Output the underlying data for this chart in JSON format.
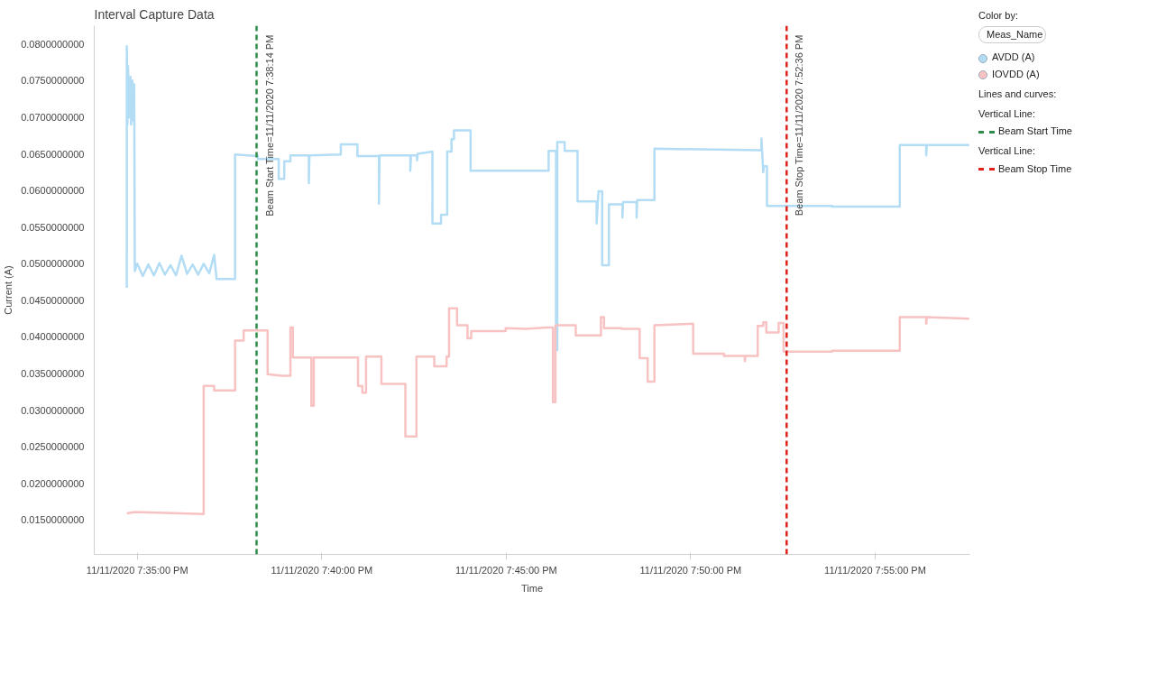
{
  "chart_data": {
    "type": "line",
    "title": "Interval Capture Data",
    "xlabel": "Time",
    "ylabel": "Current (A)",
    "legend_title": "Color by:",
    "legend": "right",
    "grid": false,
    "line_style": "solid",
    "annotations": [
      "Meas_Name",
      "Lines and curves:",
      "Vertical Line:",
      "Beam Start Time",
      "Vertical Line:",
      "Beam Stop Time"
    ],
    "xlim": [
      "2020-11-11T19:33:50",
      "2020-11-11T19:57:34"
    ],
    "ylim": [
      0.0103,
      0.0825
    ],
    "xticks": [
      {
        "value": "2020-11-11T19:35",
        "label": "11/11/2020 7:35:00 PM"
      },
      {
        "value": "2020-11-11T19:40",
        "label": "11/11/2020 7:40:00 PM"
      },
      {
        "value": "2020-11-11T19:45",
        "label": "11/11/2020 7:45:00 PM"
      },
      {
        "value": "2020-11-11T19:50",
        "label": "11/11/2020 7:50:00 PM"
      },
      {
        "value": "2020-11-11T19:55",
        "label": "11/11/2020 7:55:00 PM"
      }
    ],
    "yticks": [
      {
        "value": 0.015,
        "label": "0.0150000000"
      },
      {
        "value": 0.02,
        "label": "0.0200000000"
      },
      {
        "value": 0.025,
        "label": "0.0250000000"
      },
      {
        "value": 0.03,
        "label": "0.0300000000"
      },
      {
        "value": 0.035,
        "label": "0.0350000000"
      },
      {
        "value": 0.04,
        "label": "0.0400000000"
      },
      {
        "value": 0.045,
        "label": "0.0450000000"
      },
      {
        "value": 0.05,
        "label": "0.0500000000"
      },
      {
        "value": 0.055,
        "label": "0.0550000000"
      },
      {
        "value": 0.06,
        "label": "0.0600000000"
      },
      {
        "value": 0.065,
        "label": "0.0650000000"
      },
      {
        "value": 0.07,
        "label": "0.0700000000"
      },
      {
        "value": 0.075,
        "label": "0.0750000000"
      },
      {
        "value": 0.08,
        "label": "0.0800000000"
      }
    ],
    "ref_lines": [
      {
        "axis": "x",
        "value": "2020-11-11T19:38:14",
        "label": "Beam Start Time=11/11/2020 7:38:14 PM",
        "color": "#2e8b4a",
        "line_style": "dashed"
      },
      {
        "axis": "x",
        "value": "2020-11-11T19:52:36",
        "label": "Beam Stop Time=11/11/2020 7:52:36 PM",
        "color": "#e0201b",
        "line_style": "dashed"
      }
    ],
    "series": [
      {
        "name": "AVDD (A)",
        "color": "#b3dcf5",
        "x": [
          "2020-11-11T19:34:43",
          "2020-11-11T19:34:43",
          "2020-11-11T19:34:44",
          "2020-11-11T19:34:45",
          "2020-11-11T19:34:47",
          "2020-11-11T19:34:49",
          "2020-11-11T19:34:50",
          "2020-11-11T19:34:52",
          "2020-11-11T19:34:54",
          "2020-11-11T19:34:55",
          "2020-11-11T19:34:56",
          "2020-11-11T19:35:00",
          "2020-11-11T19:35:09",
          "2020-11-11T19:35:18",
          "2020-11-11T19:35:27",
          "2020-11-11T19:35:36",
          "2020-11-11T19:35:45",
          "2020-11-11T19:35:54",
          "2020-11-11T19:36:03",
          "2020-11-11T19:36:12",
          "2020-11-11T19:36:21",
          "2020-11-11T19:36:30",
          "2020-11-11T19:36:39",
          "2020-11-11T19:36:48",
          "2020-11-11T19:36:57",
          "2020-11-11T19:37:05",
          "2020-11-11T19:37:09",
          "2020-11-11T19:37:39",
          "2020-11-11T19:37:39",
          "2020-11-11T19:38:16",
          "2020-11-11T19:38:16",
          "2020-11-11T19:38:50",
          "2020-11-11T19:38:50",
          "2020-11-11T19:38:59",
          "2020-11-11T19:38:59",
          "2020-11-11T19:39:09",
          "2020-11-11T19:39:09",
          "2020-11-11T19:39:39",
          "2020-11-11T19:39:39",
          "2020-11-11T19:39:40",
          "2020-11-11T19:40:31",
          "2020-11-11T19:40:31",
          "2020-11-11T19:40:58",
          "2020-11-11T19:40:58",
          "2020-11-11T19:41:33",
          "2020-11-11T19:41:33",
          "2020-11-11T19:41:34",
          "2020-11-11T19:42:24",
          "2020-11-11T19:42:24",
          "2020-11-11T19:42:25",
          "2020-11-11T19:42:35",
          "2020-11-11T19:42:35",
          "2020-11-11T19:42:36",
          "2020-11-11T19:43:00",
          "2020-11-11T19:43:00",
          "2020-11-11T19:43:14",
          "2020-11-11T19:43:14",
          "2020-11-11T19:43:24",
          "2020-11-11T19:43:24",
          "2020-11-11T19:43:31",
          "2020-11-11T19:43:31",
          "2020-11-11T19:43:35",
          "2020-11-11T19:43:35",
          "2020-11-11T19:44:02",
          "2020-11-11T19:44:02",
          "2020-11-11T19:46:09",
          "2020-11-11T19:46:09",
          "2020-11-11T19:46:21",
          "2020-11-11T19:46:21",
          "2020-11-11T19:46:23",
          "2020-11-11T19:46:23",
          "2020-11-11T19:46:35",
          "2020-11-11T19:46:35",
          "2020-11-11T19:46:56",
          "2020-11-11T19:46:56",
          "2020-11-11T19:47:27",
          "2020-11-11T19:47:27",
          "2020-11-11T19:47:30",
          "2020-11-11T19:47:36",
          "2020-11-11T19:47:36",
          "2020-11-11T19:47:47",
          "2020-11-11T19:47:47",
          "2020-11-11T19:48:09",
          "2020-11-11T19:48:09",
          "2020-11-11T19:48:10",
          "2020-11-11T19:48:32",
          "2020-11-11T19:48:32",
          "2020-11-11T19:48:33",
          "2020-11-11T19:49:01",
          "2020-11-11T19:49:01",
          "2020-11-11T19:51:55",
          "2020-11-11T19:51:55",
          "2020-11-11T19:51:58",
          "2020-11-11T19:51:59",
          "2020-11-11T19:52:04",
          "2020-11-11T19:52:04",
          "2020-11-11T19:53:50",
          "2020-11-11T19:53:50",
          "2020-11-11T19:55:40",
          "2020-11-11T19:55:40",
          "2020-11-11T19:56:23",
          "2020-11-11T19:56:23",
          "2020-11-11T19:56:24",
          "2020-11-11T19:57:33"
        ],
        "values": [
          0.0467,
          0.0797,
          0.069,
          0.077,
          0.07,
          0.0755,
          0.069,
          0.075,
          0.0695,
          0.0745,
          0.049,
          0.05,
          0.0483,
          0.0499,
          0.0484,
          0.0501,
          0.0485,
          0.0498,
          0.0484,
          0.0511,
          0.0486,
          0.0499,
          0.0485,
          0.05,
          0.0487,
          0.0512,
          0.0479,
          0.0479,
          0.0649,
          0.0647,
          0.0643,
          0.0643,
          0.0616,
          0.0616,
          0.064,
          0.064,
          0.0648,
          0.0648,
          0.061,
          0.0648,
          0.0649,
          0.0663,
          0.0663,
          0.0647,
          0.0647,
          0.0582,
          0.0648,
          0.0648,
          0.0627,
          0.0648,
          0.0648,
          0.0641,
          0.065,
          0.0653,
          0.0555,
          0.0555,
          0.0567,
          0.0567,
          0.0653,
          0.0653,
          0.067,
          0.067,
          0.0682,
          0.0682,
          0.0627,
          0.0627,
          0.0654,
          0.0654,
          0.0382,
          0.0382,
          0.0666,
          0.0666,
          0.0654,
          0.0654,
          0.0585,
          0.0585,
          0.0555,
          0.0599,
          0.0599,
          0.0498,
          0.0498,
          0.0581,
          0.0581,
          0.0563,
          0.0584,
          0.0584,
          0.0563,
          0.0587,
          0.0587,
          0.0657,
          0.0655,
          0.0671,
          0.0625,
          0.0633,
          0.0633,
          0.0579,
          0.0579,
          0.0578,
          0.0578,
          0.0662,
          0.0662,
          0.0648,
          0.0662,
          0.0662
        ]
      },
      {
        "name": "IOVDD (A)",
        "color": "#f8c2c2",
        "x": [
          "2020-11-11T19:34:43",
          "2020-11-11T19:34:56",
          "2020-11-11T19:36:48",
          "2020-11-11T19:36:48",
          "2020-11-11T19:37:05",
          "2020-11-11T19:37:05",
          "2020-11-11T19:37:39",
          "2020-11-11T19:37:39",
          "2020-11-11T19:37:53",
          "2020-11-11T19:37:53",
          "2020-11-11T19:38:32",
          "2020-11-11T19:38:32",
          "2020-11-11T19:38:55",
          "2020-11-11T19:39:09",
          "2020-11-11T19:39:09",
          "2020-11-11T19:39:13",
          "2020-11-11T19:39:13",
          "2020-11-11T19:39:43",
          "2020-11-11T19:39:43",
          "2020-11-11T19:39:47",
          "2020-11-11T19:39:47",
          "2020-11-11T19:40:59",
          "2020-11-11T19:40:59",
          "2020-11-11T19:41:06",
          "2020-11-11T19:41:06",
          "2020-11-11T19:41:12",
          "2020-11-11T19:41:12",
          "2020-11-11T19:41:37",
          "2020-11-11T19:41:37",
          "2020-11-11T19:42:16",
          "2020-11-11T19:42:16",
          "2020-11-11T19:42:34",
          "2020-11-11T19:42:34",
          "2020-11-11T19:43:03",
          "2020-11-11T19:43:03",
          "2020-11-11T19:43:23",
          "2020-11-11T19:43:23",
          "2020-11-11T19:43:27",
          "2020-11-11T19:43:27",
          "2020-11-11T19:43:40",
          "2020-11-11T19:43:40",
          "2020-11-11T19:43:57",
          "2020-11-11T19:43:57",
          "2020-11-11T19:44:03",
          "2020-11-11T19:44:03",
          "2020-11-11T19:44:59",
          "2020-11-11T19:44:59",
          "2020-11-11T19:45:32",
          "2020-11-11T19:46:07",
          "2020-11-11T19:46:16",
          "2020-11-11T19:46:16",
          "2020-11-11T19:46:20",
          "2020-11-11T19:46:20",
          "2020-11-11T19:46:53",
          "2020-11-11T19:46:53",
          "2020-11-11T19:47:34",
          "2020-11-11T19:47:34",
          "2020-11-11T19:47:39",
          "2020-11-11T19:47:39",
          "2020-11-11T19:48:08",
          "2020-11-11T19:48:08",
          "2020-11-11T19:48:37",
          "2020-11-11T19:48:37",
          "2020-11-11T19:48:50",
          "2020-11-11T19:48:50",
          "2020-11-11T19:49:01",
          "2020-11-11T19:49:01",
          "2020-11-11T19:50:04",
          "2020-11-11T19:50:04",
          "2020-11-11T19:50:54",
          "2020-11-11T19:50:54",
          "2020-11-11T19:51:28",
          "2020-11-11T19:51:28",
          "2020-11-11T19:51:29",
          "2020-11-11T19:51:49",
          "2020-11-11T19:51:49",
          "2020-11-11T19:51:58",
          "2020-11-11T19:51:58",
          "2020-11-11T19:52:03",
          "2020-11-11T19:52:03",
          "2020-11-11T19:52:23",
          "2020-11-11T19:52:23",
          "2020-11-11T19:52:31",
          "2020-11-11T19:52:31",
          "2020-11-11T19:53:50",
          "2020-11-11T19:53:50",
          "2020-11-11T19:55:40",
          "2020-11-11T19:55:40",
          "2020-11-11T19:56:23",
          "2020-11-11T19:56:23",
          "2020-11-11T19:56:24",
          "2020-11-11T19:57:33"
        ],
        "values": [
          0.0159,
          0.0161,
          0.0158,
          0.0333,
          0.0333,
          0.0327,
          0.0327,
          0.0395,
          0.0395,
          0.0409,
          0.0409,
          0.0349,
          0.0347,
          0.0347,
          0.0413,
          0.0413,
          0.0372,
          0.0372,
          0.0306,
          0.0306,
          0.0372,
          0.0372,
          0.0333,
          0.0333,
          0.0324,
          0.0324,
          0.0373,
          0.0373,
          0.0336,
          0.0336,
          0.0264,
          0.0264,
          0.0373,
          0.0373,
          0.036,
          0.036,
          0.0373,
          0.0373,
          0.0439,
          0.0439,
          0.0416,
          0.0416,
          0.0398,
          0.0398,
          0.0408,
          0.0408,
          0.0412,
          0.0411,
          0.0413,
          0.0413,
          0.0311,
          0.0311,
          0.0416,
          0.0416,
          0.0402,
          0.0402,
          0.0427,
          0.0427,
          0.0412,
          0.0412,
          0.0411,
          0.0411,
          0.0371,
          0.0371,
          0.0339,
          0.0339,
          0.0416,
          0.0418,
          0.0377,
          0.0377,
          0.0374,
          0.0374,
          0.0367,
          0.0374,
          0.0374,
          0.0415,
          0.0415,
          0.042,
          0.042,
          0.0406,
          0.0406,
          0.0419,
          0.0419,
          0.038,
          0.038,
          0.0381,
          0.0381,
          0.0427,
          0.0427,
          0.0418,
          0.0427,
          0.0425
        ]
      }
    ]
  }
}
